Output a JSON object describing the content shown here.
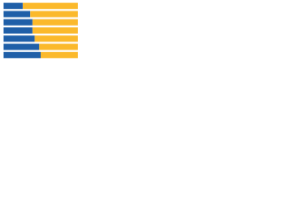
{
  "chart_data": {
    "type": "bar",
    "orientation": "horizontal",
    "stacked": true,
    "categories": [
      null,
      null,
      null,
      null,
      null,
      null,
      null
    ],
    "series": [
      {
        "color": "#1f5fa8",
        "values": [
          26,
          36,
          39,
          39,
          42,
          48,
          50
        ]
      },
      {
        "color": "#fbb92b",
        "values": [
          74,
          64,
          61,
          61,
          58,
          52,
          50
        ]
      }
    ],
    "xlim": [
      0,
      100
    ]
  }
}
